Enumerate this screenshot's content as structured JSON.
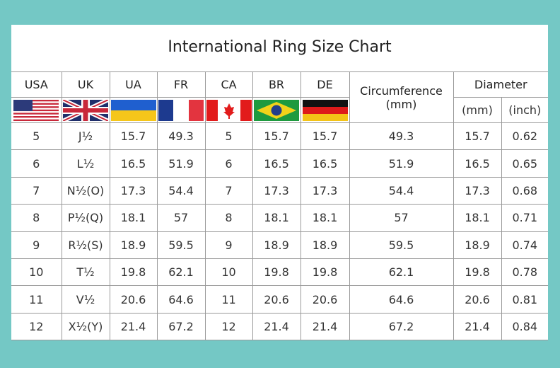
{
  "title": "International Ring Size Chart",
  "columns": [
    "USA",
    "UK",
    "UA",
    "FR",
    "CA",
    "BR",
    "DE"
  ],
  "circumference": {
    "label": "Circumference",
    "unit": "(mm)"
  },
  "diameter": {
    "label": "Diameter",
    "sub": [
      "(mm)",
      "(inch)"
    ]
  },
  "flags": [
    "us-flag-icon",
    "uk-flag-icon",
    "ukraine-flag-icon",
    "france-flag-icon",
    "canada-flag-icon",
    "brazil-flag-icon",
    "germany-flag-icon"
  ],
  "rows": [
    [
      "5",
      "J½",
      "15.7",
      "49.3",
      "5",
      "15.7",
      "15.7",
      "49.3",
      "15.7",
      "0.62"
    ],
    [
      "6",
      "L½",
      "16.5",
      "51.9",
      "6",
      "16.5",
      "16.5",
      "51.9",
      "16.5",
      "0.65"
    ],
    [
      "7",
      "N½(O)",
      "17.3",
      "54.4",
      "7",
      "17.3",
      "17.3",
      "54.4",
      "17.3",
      "0.68"
    ],
    [
      "8",
      "P½(Q)",
      "18.1",
      "57",
      "8",
      "18.1",
      "18.1",
      "57",
      "18.1",
      "0.71"
    ],
    [
      "9",
      "R½(S)",
      "18.9",
      "59.5",
      "9",
      "18.9",
      "18.9",
      "59.5",
      "18.9",
      "0.74"
    ],
    [
      "10",
      "T½",
      "19.8",
      "62.1",
      "10",
      "19.8",
      "19.8",
      "62.1",
      "19.8",
      "0.78"
    ],
    [
      "11",
      "V½",
      "20.6",
      "64.6",
      "11",
      "20.6",
      "20.6",
      "64.6",
      "20.6",
      "0.81"
    ],
    [
      "12",
      "X½(Y)",
      "21.4",
      "67.2",
      "12",
      "21.4",
      "21.4",
      "67.2",
      "21.4",
      "0.84"
    ]
  ],
  "colors": {
    "background": "#74c8c5",
    "panel": "#ffffff",
    "grid": "#9a9a9a"
  }
}
